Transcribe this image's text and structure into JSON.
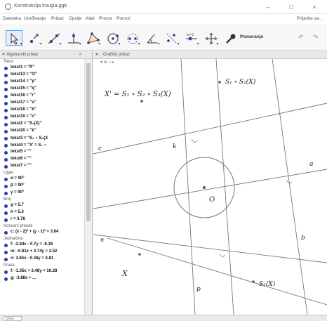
{
  "window": {
    "title": "Konstrukcija trougla.ggb",
    "minimize": "–",
    "maximize": "□",
    "close": "×"
  },
  "menubar": {
    "items": [
      "Datoteka",
      "Uređivanje",
      "Prikaz",
      "Opcije",
      "Alati",
      "Prozor",
      "Pomoć"
    ],
    "help": "Prijavite se..."
  },
  "toolbar": {
    "tools": [
      {
        "name": "move-tool-icon",
        "selected": true
      },
      {
        "name": "point-tool-icon",
        "selected": false
      },
      {
        "name": "line-tool-icon",
        "selected": false
      },
      {
        "name": "perpendicular-tool-icon",
        "selected": false
      },
      {
        "name": "polygon-tool-icon",
        "selected": false
      },
      {
        "name": "circle-tool-icon",
        "selected": false
      },
      {
        "name": "ellipse-tool-icon",
        "selected": false
      },
      {
        "name": "angle-tool-icon",
        "selected": false
      },
      {
        "name": "reflect-tool-icon",
        "selected": false
      },
      {
        "name": "slider-tool-icon",
        "selected": false
      },
      {
        "name": "move-view-tool-icon",
        "selected": false
      }
    ],
    "hint": "Pomeranje"
  },
  "algebra": {
    "header": "Algebarski prikaz",
    "categories": {
      "text": "Tekst",
      "angle": "Ugao",
      "number": "Broj",
      "conic": "Konusni presek",
      "line": "Jednačina",
      "line2": "Prava"
    },
    "text_rows": [
      "tekst1 = \"R\"",
      "tekst13 = \"O\"",
      "tekst14 = \"p\"",
      "tekst15 = \"q\"",
      "tekst16 = \"r\"",
      "tekst17 = \"a\"",
      "tekst18 = \"b\"",
      "tekst19 = \"c\"",
      "tekst2 = \"S₁(X)\"",
      "tekst20 = \"k\"",
      "tekst3 = \"S₁ ∘ S₂(X",
      "tekst4 = \"X' = S₁ ∘",
      "tekst5 = \"\"",
      "tekst6 = \"\"",
      "tekst7 = \"\""
    ],
    "angle_rows": [
      "α = 90°",
      "β = 90°",
      "γ = 90°"
    ],
    "number_rows": [
      "g = 5.7",
      "h = 5.3",
      "r = 3.76"
    ],
    "conic_rows": [
      "c: (x - 2)² + (y - 1)² = 3.84"
    ],
    "line_rows": [
      "f: -2.84x - 0.7y = -6.38",
      "m: -0.81x + 3.74y = 2.52",
      "n: 3.84x - 0.38y = 4.81"
    ],
    "line2_rows": [
      "f: -1.35x + 3.48y = 10.28",
      "g: -3.88x + ..."
    ]
  },
  "graphics": {
    "header": "Grafički prikaz",
    "style_controls": "▾ ⊕ ○ ▸",
    "formula_top": "X' = S₁ ∘ S₂ ∘ S₃(X)",
    "formula_top2": "S₁ ∘ S₂(X)",
    "label_O": "O",
    "label_k": "k",
    "label_a": "a",
    "label_b": "b",
    "label_c": "c",
    "label_p": "p",
    "label_X": "X",
    "label_S1X": "S₁(X)"
  },
  "status": {
    "input": "Unos:"
  },
  "colors": {
    "accent": "#2a3f9f",
    "line": "#777777",
    "selected_tool": "#6b9bd8"
  }
}
